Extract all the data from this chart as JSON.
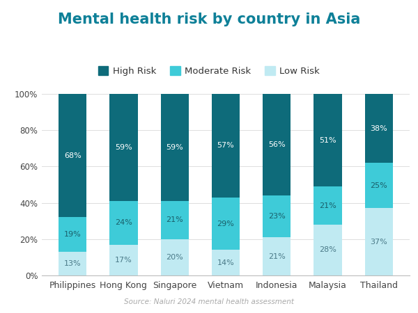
{
  "title": "Mental health risk by country in Asia",
  "categories": [
    "Philippines",
    "Hong Kong",
    "Singapore",
    "Vietnam",
    "Indonesia",
    "Malaysia",
    "Thailand"
  ],
  "high_risk": [
    68,
    59,
    59,
    57,
    56,
    51,
    38
  ],
  "moderate_risk": [
    19,
    24,
    21,
    29,
    23,
    21,
    25
  ],
  "low_risk": [
    13,
    17,
    20,
    14,
    21,
    28,
    37
  ],
  "color_high": "#0e6b7a",
  "color_moderate": "#3ecbd8",
  "color_low": "#c0eaf2",
  "legend_labels": [
    "High Risk",
    "Moderate Risk",
    "Low Risk"
  ],
  "source_text": "Source: Naluri 2024 mental health assessment",
  "background_color": "#ffffff",
  "title_color": "#0e8098",
  "label_color_high": "#ffffff",
  "label_color_moderate": "#1a5f6a",
  "label_color_low": "#4a7a88"
}
